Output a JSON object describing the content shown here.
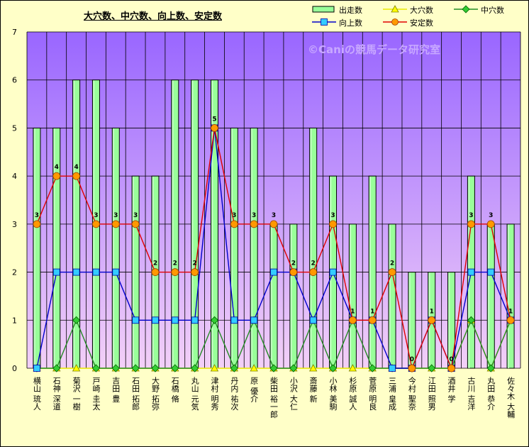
{
  "chart_data": {
    "type": "bar",
    "title": "大穴数、中穴数、向上数、安定数",
    "watermark": "©Caniの競馬データ研究室",
    "ylim": [
      0,
      7
    ],
    "yticks": [
      0,
      1,
      2,
      3,
      4,
      5,
      6,
      7
    ],
    "grid": true,
    "legend_position": "top-right",
    "categories": [
      "横山 琉人",
      "石神 深道",
      "菊沢 一樹",
      "戸崎 圭太",
      "吉田 豊",
      "石田 拓郎",
      "大野 拓弥",
      "石橋 脩",
      "丸山 元気",
      "津村 明秀",
      "丹内 祐次",
      "原 優介",
      "柴田 裕一郎",
      "小沢 大仁",
      "斎藤 新",
      "小林 美駒",
      "杉原 誠人",
      "菅原 明良",
      "三浦 皇成",
      "今村 聖奈",
      "江田 照男",
      "酒井 学",
      "古川 吉洋",
      "丸田 恭介",
      "佐々木 大輔"
    ],
    "series": [
      {
        "name": "出走数",
        "kind": "bar",
        "color": "#99ff99",
        "values": [
          5,
          5,
          6,
          6,
          5,
          4,
          4,
          6,
          6,
          6,
          5,
          5,
          3,
          3,
          5,
          4,
          3,
          4,
          3,
          2,
          2,
          2,
          4,
          3,
          3
        ]
      },
      {
        "name": "大穴数",
        "kind": "line",
        "color": "#e8e800",
        "values": [
          0,
          0,
          0,
          0,
          0,
          0,
          0,
          0,
          0,
          0,
          0,
          0,
          0,
          0,
          0,
          0,
          0,
          0,
          0,
          0,
          0,
          0,
          1,
          0,
          1
        ]
      },
      {
        "name": "中穴数",
        "kind": "line",
        "color": "#228b22",
        "values": [
          0,
          0,
          1,
          0,
          0,
          0,
          0,
          0,
          0,
          1,
          0,
          1,
          0,
          0,
          1,
          0,
          1,
          0,
          0,
          0,
          0,
          0,
          1,
          0,
          1
        ]
      },
      {
        "name": "向上数",
        "kind": "line",
        "color": "#0000cc",
        "values": [
          0,
          2,
          2,
          2,
          2,
          1,
          1,
          1,
          1,
          5,
          1,
          1,
          2,
          2,
          1,
          2,
          1,
          1,
          0,
          0,
          1,
          0,
          2,
          2,
          1
        ]
      },
      {
        "name": "安定数",
        "kind": "line",
        "color": "#e00000",
        "values": [
          3,
          4,
          4,
          3,
          3,
          3,
          2,
          2,
          2,
          5,
          3,
          3,
          3,
          2,
          2,
          3,
          1,
          1,
          2,
          0,
          1,
          0,
          3,
          3,
          1
        ]
      }
    ],
    "data_labels": [
      "3",
      "4",
      "4",
      "3",
      "3",
      "3",
      "2",
      "2",
      "2",
      "5",
      "3",
      "3",
      "3",
      "2",
      "2",
      "3",
      "1",
      "1",
      "2",
      "0",
      "1",
      "0",
      "3",
      "3",
      "1"
    ]
  },
  "colors": {
    "plot_top": "#9966ff",
    "plot_bottom": "#f3d0f8",
    "background": "#ffffc8"
  }
}
